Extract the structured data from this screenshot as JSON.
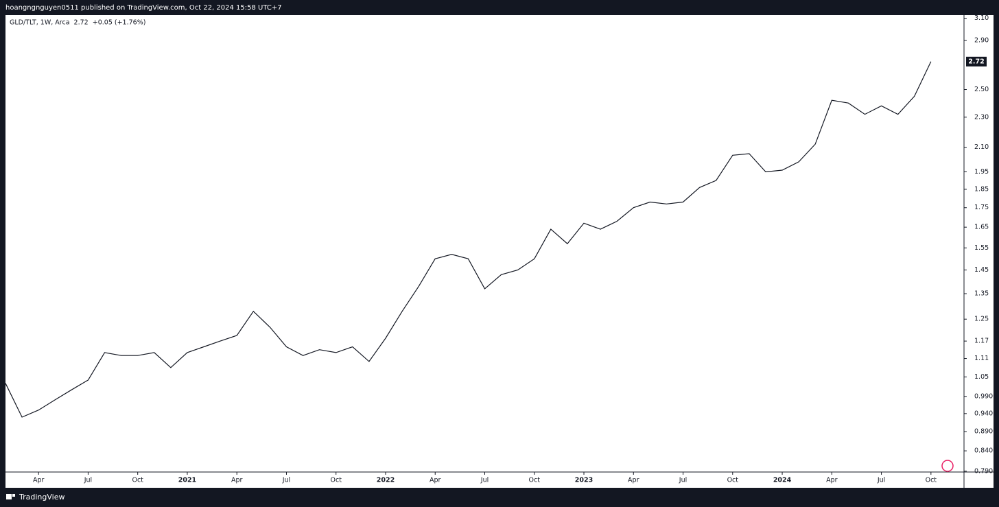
{
  "chart_data": {
    "type": "line",
    "header": "hoangngnguyen0511 published on TradingView.com, Oct 22, 2024 15:58 UTC+7",
    "title": "GLD/TLT, 1W, Arca  2.72  +0.05 (+1.76%)",
    "footer": "TradingView",
    "last_price": 2.72,
    "log_scale": true,
    "x": [
      "2020-02",
      "2020-03",
      "2020-04",
      "2020-05",
      "2020-06",
      "2020-07",
      "2020-08",
      "2020-09",
      "2020-10",
      "2020-11",
      "2020-12",
      "2021-01",
      "2021-02",
      "2021-03",
      "2021-04",
      "2021-05",
      "2021-06",
      "2021-07",
      "2021-08",
      "2021-09",
      "2021-10",
      "2021-11",
      "2021-12",
      "2022-01",
      "2022-02",
      "2022-03",
      "2022-04",
      "2022-05",
      "2022-06",
      "2022-07",
      "2022-08",
      "2022-09",
      "2022-10",
      "2022-11",
      "2022-12",
      "2023-01",
      "2023-02",
      "2023-03",
      "2023-04",
      "2023-05",
      "2023-06",
      "2023-07",
      "2023-08",
      "2023-09",
      "2023-10",
      "2023-11",
      "2023-12",
      "2024-01",
      "2024-02",
      "2024-03",
      "2024-04",
      "2024-05",
      "2024-06",
      "2024-07",
      "2024-08",
      "2024-09",
      "2024-10"
    ],
    "series": [
      {
        "name": "GLD/TLT",
        "color": "#131722",
        "values": [
          1.03,
          0.93,
          0.95,
          0.98,
          1.01,
          1.04,
          1.13,
          1.12,
          1.12,
          1.13,
          1.08,
          1.13,
          1.15,
          1.17,
          1.19,
          1.28,
          1.22,
          1.15,
          1.12,
          1.14,
          1.13,
          1.15,
          1.1,
          1.18,
          1.28,
          1.38,
          1.5,
          1.52,
          1.5,
          1.37,
          1.43,
          1.45,
          1.5,
          1.64,
          1.57,
          1.67,
          1.64,
          1.68,
          1.75,
          1.78,
          1.77,
          1.78,
          1.86,
          1.9,
          2.05,
          2.06,
          1.95,
          1.96,
          2.01,
          2.12,
          2.42,
          2.4,
          2.32,
          2.38,
          2.32,
          2.45,
          2.72
        ]
      }
    ],
    "xlim": [
      "2020-02",
      "2024-12"
    ],
    "xticks": [
      {
        "value": "2020-04",
        "label": "Apr"
      },
      {
        "value": "2020-07",
        "label": "Jul"
      },
      {
        "value": "2020-10",
        "label": "Oct"
      },
      {
        "value": "2021-01",
        "label": "2021"
      },
      {
        "value": "2021-04",
        "label": "Apr"
      },
      {
        "value": "2021-07",
        "label": "Jul"
      },
      {
        "value": "2021-10",
        "label": "Oct"
      },
      {
        "value": "2022-01",
        "label": "2022"
      },
      {
        "value": "2022-04",
        "label": "Apr"
      },
      {
        "value": "2022-07",
        "label": "Jul"
      },
      {
        "value": "2022-10",
        "label": "Oct"
      },
      {
        "value": "2023-01",
        "label": "2023"
      },
      {
        "value": "2023-04",
        "label": "Apr"
      },
      {
        "value": "2023-07",
        "label": "Jul"
      },
      {
        "value": "2023-10",
        "label": "Oct"
      },
      {
        "value": "2024-01",
        "label": "2024"
      },
      {
        "value": "2024-04",
        "label": "Apr"
      },
      {
        "value": "2024-07",
        "label": "Jul"
      },
      {
        "value": "2024-10",
        "label": "Oct"
      }
    ],
    "ylim": [
      0.788,
      3.13
    ],
    "yticks": [
      {
        "value": 3.1,
        "label": "3.10"
      },
      {
        "value": 2.9,
        "label": "2.90"
      },
      {
        "value": 2.5,
        "label": "2.50"
      },
      {
        "value": 2.3,
        "label": "2.30"
      },
      {
        "value": 2.1,
        "label": "2.10"
      },
      1.95,
      1.85,
      1.75,
      1.65,
      1.55,
      1.45,
      1.35,
      1.25,
      1.17,
      1.11,
      1.05,
      {
        "value": 0.99,
        "label": "0.9900"
      },
      {
        "value": 0.94,
        "label": "0.9400"
      },
      {
        "value": 0.89,
        "label": "0.8900"
      },
      {
        "value": 0.84,
        "label": "0.8400"
      },
      {
        "value": 0.79,
        "label": "0.7900"
      }
    ]
  }
}
